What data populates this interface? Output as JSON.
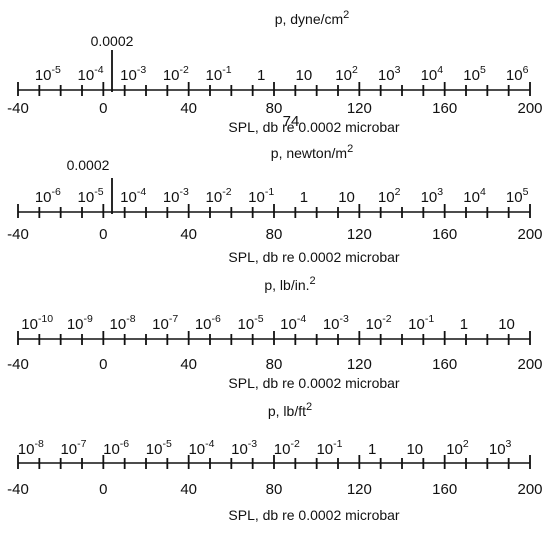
{
  "scales": [
    {
      "id": "dyne",
      "title": {
        "base": "p, dyne/cm",
        "exp": "2"
      },
      "subtitle": "SPL, db re 0.0002 microbar",
      "annotation": "0.0002",
      "extra_db_label": "74",
      "db_labels": [
        "-40",
        "0",
        "40",
        "80",
        "120",
        "160",
        "200"
      ],
      "pressure_labels": [
        {
          "b": "10",
          "e": "-5",
          "db": -26
        },
        {
          "b": "10",
          "e": "-4",
          "db": -6
        },
        {
          "b": "10",
          "e": "-3",
          "db": 14
        },
        {
          "b": "10",
          "e": "-2",
          "db": 34
        },
        {
          "b": "10",
          "e": "-1",
          "db": 54
        },
        {
          "b": "1",
          "e": "",
          "db": 74
        },
        {
          "b": "10",
          "e": "",
          "db": 94
        },
        {
          "b": "10",
          "e": "2",
          "db": 114
        },
        {
          "b": "10",
          "e": "3",
          "db": 134
        },
        {
          "b": "10",
          "e": "4",
          "db": 154
        },
        {
          "b": "10",
          "e": "5",
          "db": 174
        },
        {
          "b": "10",
          "e": "6",
          "db": 194
        }
      ]
    },
    {
      "id": "newton",
      "title": {
        "base": "p, newton/m",
        "exp": "2"
      },
      "subtitle": "SPL, db re 0.0002 microbar",
      "annotation": "0.0002",
      "db_labels": [
        "-40",
        "0",
        "40",
        "80",
        "120",
        "160",
        "200"
      ],
      "pressure_labels": [
        {
          "b": "10",
          "e": "-6",
          "db": -26
        },
        {
          "b": "10",
          "e": "-5",
          "db": -6
        },
        {
          "b": "10",
          "e": "-4",
          "db": 14
        },
        {
          "b": "10",
          "e": "-3",
          "db": 34
        },
        {
          "b": "10",
          "e": "-2",
          "db": 54
        },
        {
          "b": "10",
          "e": "-1",
          "db": 74
        },
        {
          "b": "1",
          "e": "",
          "db": 94
        },
        {
          "b": "10",
          "e": "",
          "db": 114
        },
        {
          "b": "10",
          "e": "2",
          "db": 134
        },
        {
          "b": "10",
          "e": "3",
          "db": 154
        },
        {
          "b": "10",
          "e": "4",
          "db": 174
        },
        {
          "b": "10",
          "e": "5",
          "db": 194
        }
      ]
    },
    {
      "id": "lbin",
      "title": {
        "base": "p, lb/in.",
        "exp": "2"
      },
      "subtitle": "SPL, db re 0.0002 microbar",
      "db_labels": [
        "-40",
        "0",
        "40",
        "80",
        "120",
        "160",
        "200"
      ],
      "pressure_labels": [
        {
          "b": "10",
          "e": "-10",
          "db": -31
        },
        {
          "b": "10",
          "e": "-9",
          "db": -11
        },
        {
          "b": "10",
          "e": "-8",
          "db": 9
        },
        {
          "b": "10",
          "e": "-7",
          "db": 29
        },
        {
          "b": "10",
          "e": "-6",
          "db": 49
        },
        {
          "b": "10",
          "e": "-5",
          "db": 69
        },
        {
          "b": "10",
          "e": "-4",
          "db": 89
        },
        {
          "b": "10",
          "e": "-3",
          "db": 109
        },
        {
          "b": "10",
          "e": "-2",
          "db": 129
        },
        {
          "b": "10",
          "e": "-1",
          "db": 149
        },
        {
          "b": "1",
          "e": "",
          "db": 169
        },
        {
          "b": "10",
          "e": "",
          "db": 189
        }
      ]
    },
    {
      "id": "lbft",
      "title": {
        "base": "p, lb/ft",
        "exp": "2"
      },
      "subtitle": "SPL, db re 0.0002 microbar",
      "db_labels": [
        "-40",
        "0",
        "40",
        "80",
        "120",
        "160",
        "200"
      ],
      "pressure_labels": [
        {
          "b": "10",
          "e": "-8",
          "db": -34
        },
        {
          "b": "10",
          "e": "-7",
          "db": -14
        },
        {
          "b": "10",
          "e": "-6",
          "db": 6
        },
        {
          "b": "10",
          "e": "-5",
          "db": 26
        },
        {
          "b": "10",
          "e": "-4",
          "db": 46
        },
        {
          "b": "10",
          "e": "-3",
          "db": 66
        },
        {
          "b": "10",
          "e": "-2",
          "db": 86
        },
        {
          "b": "10",
          "e": "-1",
          "db": 106
        },
        {
          "b": "1",
          "e": "",
          "db": 126
        },
        {
          "b": "10",
          "e": "",
          "db": 146
        },
        {
          "b": "10",
          "e": "2",
          "db": 166
        },
        {
          "b": "10",
          "e": "3",
          "db": 186
        }
      ]
    }
  ]
}
